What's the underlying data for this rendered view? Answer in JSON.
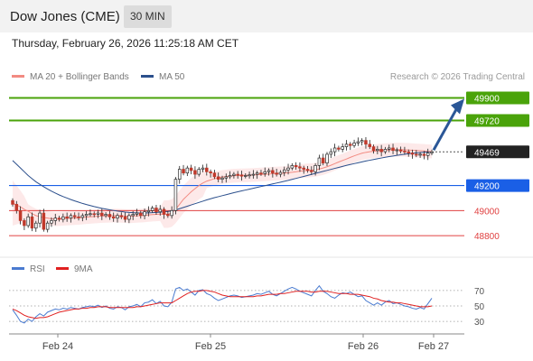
{
  "header": {
    "instrument": "Dow Jones (CME)",
    "timeframe": "30 MIN",
    "timestamp": "Thursday, February 26, 2026 11:25:18 AM CET"
  },
  "legend": [
    {
      "label": "MA 20 + Bollinger Bands",
      "color": "#f28b82"
    },
    {
      "label": "MA 50",
      "color": "#2b4f8c"
    }
  ],
  "credit": "Research © 2026 Trading Central",
  "rsi_legend": [
    {
      "label": "RSI",
      "color": "#4a7bd0"
    },
    {
      "label": "9MA",
      "color": "#e02020"
    }
  ],
  "colors": {
    "resistance": "#4aa30a",
    "support": "#1a5fe6",
    "lower_support": "#e04040",
    "last_price": "#222222",
    "up_candle": "#2a2a2a",
    "down_candle": "#c0392b",
    "bollinger_fill": "#fde4e4",
    "ma20": "#f28b82",
    "ma50": "#2b4f8c",
    "forecast_arrow": "#2b5797"
  },
  "chart_data": [
    {
      "type": "candlestick",
      "x_labels": [
        "Feb 24",
        "Feb 25",
        "Feb 26",
        "Feb 27"
      ],
      "y_range": [
        48750,
        49990
      ],
      "levels": [
        {
          "value": 49900,
          "label": "49900",
          "kind": "resistance"
        },
        {
          "value": 49720,
          "label": "49720",
          "kind": "resistance"
        },
        {
          "value": 49469,
          "label": "49469",
          "kind": "last"
        },
        {
          "value": 49200,
          "label": "49200",
          "kind": "support"
        },
        {
          "value": 49000,
          "label": "49000",
          "kind": "lower_support"
        },
        {
          "value": 48800,
          "label": "48800",
          "kind": "lower_support"
        }
      ],
      "close": [
        49050,
        49000,
        48920,
        48880,
        48950,
        48860,
        48900,
        48980,
        48850,
        48900,
        48920,
        48940,
        48930,
        48950,
        48940,
        48960,
        48950,
        48945,
        48960,
        48970,
        48975,
        48970,
        48980,
        48960,
        48970,
        48950,
        48940,
        48960,
        48950,
        48930,
        48960,
        48970,
        48980,
        48960,
        48990,
        49000,
        49020,
        48990,
        49010,
        48970,
        48960,
        49000,
        49250,
        49330,
        49300,
        49340,
        49320,
        49290,
        49330,
        49340,
        49310,
        49300,
        49270,
        49250,
        49260,
        49270,
        49280,
        49290,
        49285,
        49275,
        49280,
        49285,
        49290,
        49300,
        49295,
        49310,
        49320,
        49300,
        49290,
        49305,
        49325,
        49340,
        49360,
        49350,
        49340,
        49330,
        49320,
        49310,
        49360,
        49420,
        49380,
        49450,
        49470,
        49500,
        49490,
        49510,
        49530,
        49520,
        49540,
        49550,
        49560,
        49530,
        49510,
        49480,
        49490,
        49470,
        49490,
        49500,
        49480,
        49485,
        49475,
        49470,
        49460,
        49450,
        49445,
        49450,
        49440,
        49460,
        49469
      ],
      "ma20": [
        49060,
        49045,
        49030,
        49010,
        48995,
        48975,
        48960,
        48950,
        48945,
        48940,
        48935,
        48930,
        48932,
        48935,
        48937,
        48938,
        48940,
        48942,
        48945,
        48948,
        48950,
        48953,
        48955,
        48957,
        48958,
        48959,
        48960,
        48960,
        48958,
        48956,
        48955,
        48956,
        48958,
        48960,
        48962,
        48965,
        48968,
        48970,
        48972,
        48972,
        48972,
        48980,
        49010,
        49050,
        49090,
        49120,
        49150,
        49175,
        49200,
        49220,
        49235,
        49245,
        49255,
        49262,
        49268,
        49272,
        49275,
        49278,
        49280,
        49281,
        49282,
        49283,
        49284,
        49286,
        49288,
        49290,
        49292,
        49294,
        49295,
        49297,
        49299,
        49302,
        49306,
        49310,
        49315,
        49318,
        49320,
        49322,
        49326,
        49332,
        49340,
        49350,
        49362,
        49375,
        49388,
        49400,
        49412,
        49425,
        49437,
        49448,
        49458,
        49465,
        49470,
        49474,
        49477,
        49480,
        49482,
        49484,
        49485,
        49486,
        49486,
        49485,
        49484,
        49482,
        49480,
        49478,
        49476,
        49474,
        49472
      ],
      "ma50": [
        49400,
        49370,
        49340,
        49310,
        49280,
        49255,
        49230,
        49210,
        49190,
        49172,
        49155,
        49140,
        49125,
        49112,
        49100,
        49088,
        49077,
        49067,
        49057,
        49048,
        49040,
        49032,
        49025,
        49018,
        49012,
        49006,
        49001,
        48996,
        48992,
        48988,
        48985,
        48983,
        48982,
        48981,
        48981,
        48982,
        48983,
        48985,
        48987,
        48990,
        48993,
        48997,
        49005,
        49015,
        49025,
        49035,
        49045,
        49055,
        49065,
        49075,
        49085,
        49094,
        49103,
        49111,
        49119,
        49127,
        49135,
        49143,
        49150,
        49157,
        49164,
        49171,
        49178,
        49185,
        49192,
        49199,
        49206,
        49213,
        49220,
        49227,
        49234,
        49241,
        49249,
        49257,
        49265,
        49273,
        49281,
        49289,
        49297,
        49305,
        49313,
        49321,
        49329,
        49337,
        49345,
        49353,
        49361,
        49368,
        49375,
        49382,
        49389,
        49396,
        49402,
        49408,
        49414,
        49420,
        49426,
        49431,
        49436,
        49441,
        49446,
        49450,
        49454,
        49458,
        49461,
        49464,
        49466,
        49468,
        49469
      ]
    },
    {
      "type": "line",
      "x_labels": [
        "Feb 24",
        "Feb 25",
        "Feb 26",
        "Feb 27"
      ],
      "y_ticks": [
        30,
        50,
        70
      ],
      "y_range": [
        15,
        85
      ],
      "series": [
        {
          "name": "RSI",
          "values": [
            45,
            38,
            30,
            28,
            33,
            30,
            36,
            40,
            37,
            42,
            44,
            46,
            45,
            47,
            46,
            48,
            47,
            46,
            48,
            49,
            50,
            49,
            51,
            48,
            50,
            47,
            46,
            49,
            48,
            45,
            49,
            50,
            52,
            49,
            54,
            55,
            58,
            53,
            56,
            50,
            49,
            55,
            72,
            74,
            70,
            72,
            68,
            64,
            70,
            71,
            66,
            64,
            60,
            57,
            59,
            61,
            63,
            64,
            63,
            61,
            62,
            63,
            64,
            66,
            65,
            67,
            69,
            65,
            63,
            66,
            69,
            72,
            74,
            72,
            69,
            67,
            65,
            63,
            70,
            76,
            69,
            66,
            62,
            60,
            64,
            67,
            66,
            68,
            65,
            62,
            63,
            57,
            54,
            51,
            54,
            51,
            55,
            57,
            53,
            54,
            52,
            50,
            49,
            47,
            46,
            48,
            46,
            53,
            60
          ]
        },
        {
          "name": "9MA",
          "values": [
            46,
            44,
            41,
            38,
            36,
            35,
            34,
            35,
            35,
            36,
            38,
            40,
            42,
            43,
            44,
            45,
            46,
            46,
            47,
            47,
            48,
            48,
            49,
            49,
            49,
            48,
            48,
            48,
            48,
            48,
            48,
            48,
            49,
            49,
            50,
            51,
            52,
            53,
            54,
            54,
            54,
            54,
            57,
            60,
            63,
            66,
            68,
            69,
            69,
            70,
            70,
            69,
            68,
            66,
            64,
            63,
            62,
            62,
            62,
            62,
            62,
            62,
            62,
            63,
            63,
            64,
            65,
            65,
            65,
            66,
            66,
            67,
            68,
            69,
            69,
            69,
            69,
            68,
            68,
            69,
            69,
            69,
            68,
            67,
            66,
            66,
            66,
            65,
            65,
            65,
            64,
            63,
            62,
            60,
            59,
            57,
            56,
            55,
            55,
            54,
            54,
            53,
            52,
            51,
            50,
            49,
            49,
            49,
            50
          ]
        }
      ]
    }
  ]
}
